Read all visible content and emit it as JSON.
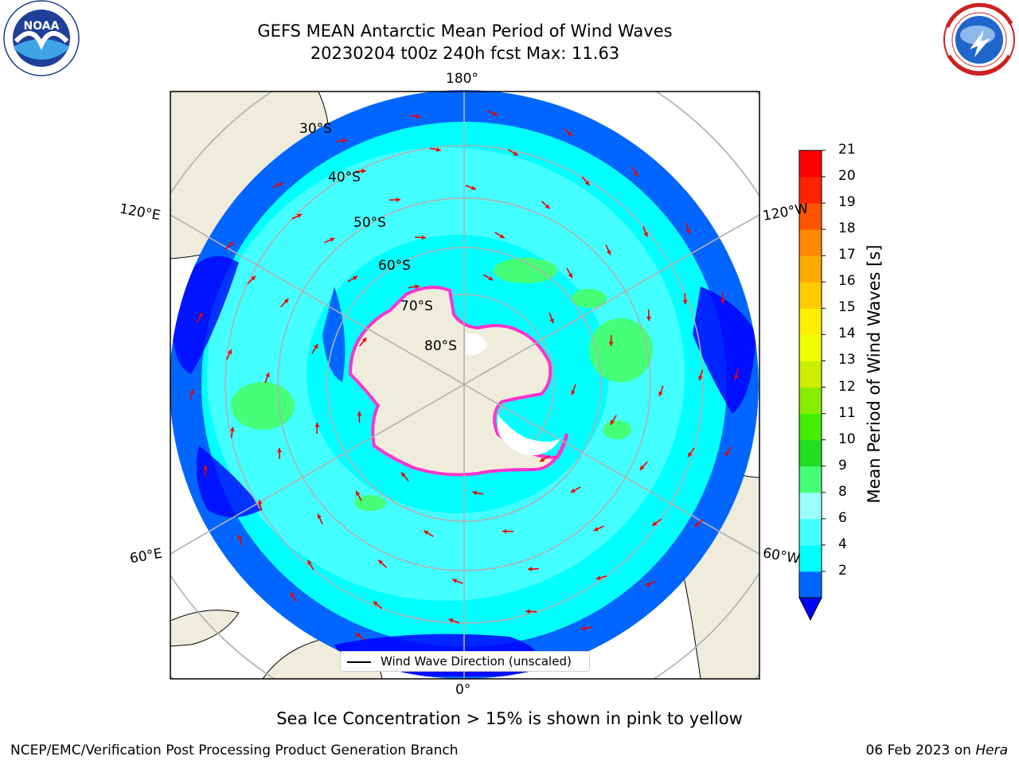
{
  "title": "GEFS MEAN Antarctic Mean Period of Wind Waves",
  "subtitle": "20230204 t00z 240h fcst   Max: 11.63",
  "logos": {
    "noaa": {
      "text": "NOAA",
      "ring_text": "NATIONAL OCEANIC AND ATMOSPHERIC ADMINISTRATION · U.S. DEPARTMENT OF COMMERCE"
    },
    "nws": {
      "ring_text": "NATIONAL WEATHER SERVICE"
    }
  },
  "map": {
    "projection": "south-polar-stereographic",
    "lon_labels": {
      "top": "180°",
      "bottom": "0°",
      "left_upper": "120°E",
      "right_upper": "120°W",
      "left_lower": "60°E",
      "right_lower": "60°W"
    },
    "lat_labels": [
      "30°S",
      "40°S",
      "50°S",
      "60°S",
      "70°S",
      "80°S"
    ],
    "legend_label": "Wind Wave Direction (unscaled)",
    "colors": {
      "land": "#efecdc",
      "ocean_low": "#0066ff",
      "ice_edge": "#ff33cc",
      "arrow": "#ee0000"
    }
  },
  "colorbar": {
    "label": "Mean Period of Wind Waves [s]",
    "ticks": [
      "21",
      "20",
      "19",
      "18",
      "17",
      "16",
      "15",
      "14",
      "13",
      "12",
      "11",
      "10",
      "9",
      "8",
      "6",
      "4",
      "2"
    ],
    "colors": [
      "#0066ff",
      "#00ffff",
      "#44ffff",
      "#99ffff",
      "#44ff77",
      "#22dd22",
      "#44ee00",
      "#88ee00",
      "#ccee00",
      "#eeff00",
      "#ffee00",
      "#ffcc00",
      "#ffaa00",
      "#ff8800",
      "#ff5500",
      "#ff2200",
      "#ff0000"
    ],
    "under_color": "#0000ff"
  },
  "caption": "Sea Ice Concentration > 15% is shown in pink to yellow",
  "footer": {
    "left": "NCEP/EMC/Verification Post Processing Product Generation Branch",
    "date": "06 Feb 2023 on",
    "host": "Hera"
  }
}
